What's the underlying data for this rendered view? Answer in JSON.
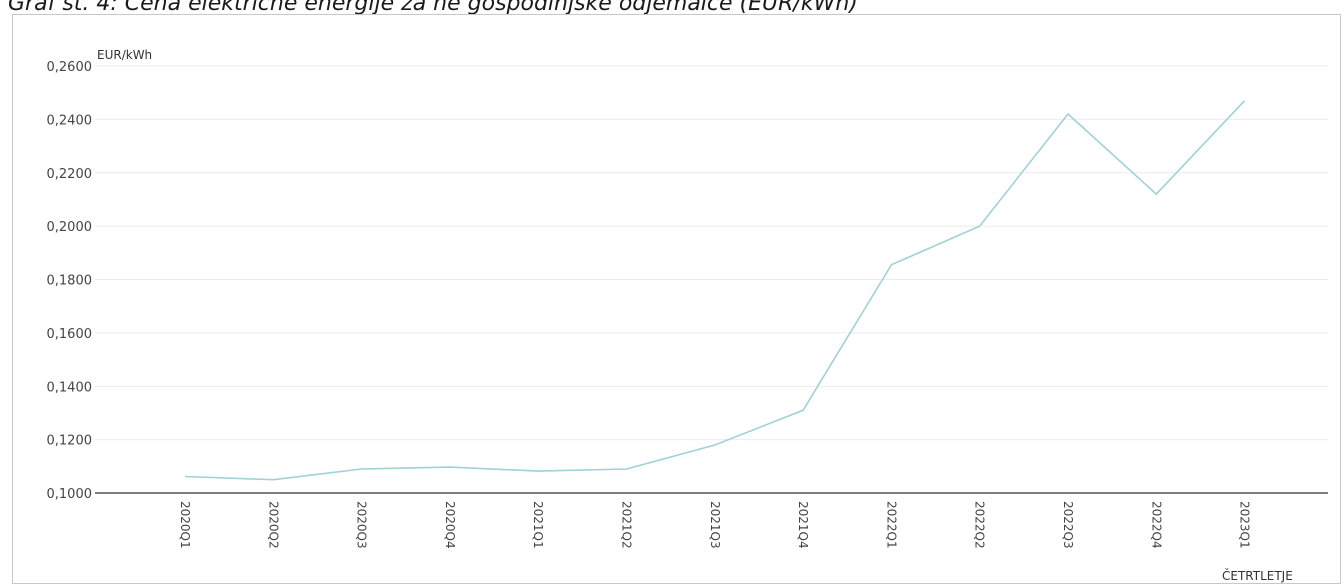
{
  "page": {
    "title": "Graf št. 4: Cena električne energije za ne gospodinjske odjemalce (EUR/kWh)"
  },
  "chart_data": {
    "type": "line",
    "title": "Graf št. 4: Cena električne energije za ne gospodinjske odjemalce (EUR/kWh)",
    "ylabel": "EUR/kWh",
    "xlabel": "ČETRTLETJE",
    "categories": [
      "2020Q1",
      "2020Q2",
      "2020Q3",
      "2020Q4",
      "2021Q1",
      "2021Q2",
      "2021Q3",
      "2021Q4",
      "2022Q1",
      "2022Q2",
      "2022Q3",
      "2022Q4",
      "2023Q1"
    ],
    "values": [
      0.1062,
      0.105,
      0.109,
      0.1097,
      0.1082,
      0.109,
      0.118,
      0.131,
      0.1855,
      0.2,
      0.242,
      0.212,
      0.247
    ],
    "ylim": [
      0.1,
      0.26
    ],
    "yticks": [
      "0,1000",
      "0,1200",
      "0,1400",
      "0,1600",
      "0,1800",
      "0,2000",
      "0,2200",
      "0,2400",
      "0,2600"
    ],
    "grid": true,
    "line_color": "#9fd1d6"
  }
}
